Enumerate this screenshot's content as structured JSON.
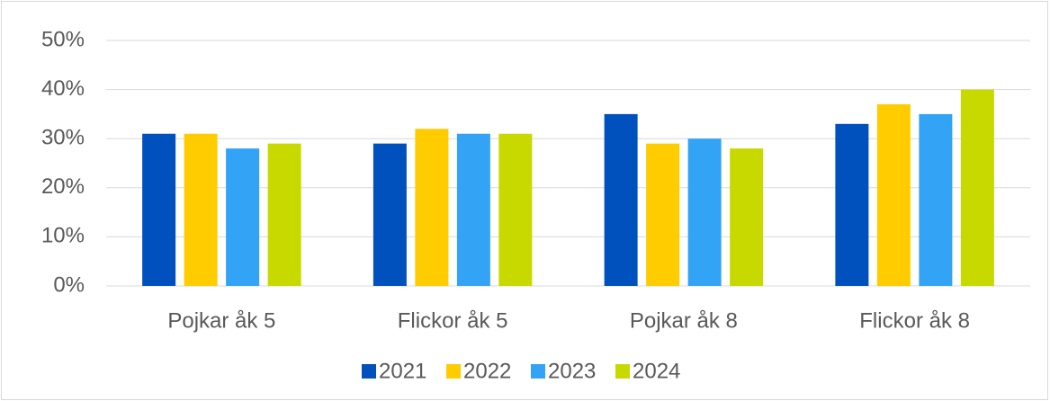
{
  "chart_data": {
    "type": "bar",
    "categories": [
      "Pojkar åk 5",
      "Flickor åk 5",
      "Pojkar åk 8",
      "Flickor åk 8"
    ],
    "series": [
      {
        "name": "2021",
        "color": "#0050be",
        "values": [
          31,
          29,
          35,
          33
        ]
      },
      {
        "name": "2022",
        "color": "#ffcc00",
        "values": [
          31,
          32,
          29,
          37
        ]
      },
      {
        "name": "2023",
        "color": "#33a3f5",
        "values": [
          28,
          31,
          30,
          35
        ]
      },
      {
        "name": "2024",
        "color": "#c8d900",
        "values": [
          29,
          31,
          28,
          40
        ]
      }
    ],
    "ylim": [
      0,
      50
    ],
    "yticks": [
      {
        "value": 0,
        "label": "0%"
      },
      {
        "value": 10,
        "label": "10%"
      },
      {
        "value": 20,
        "label": "20%"
      },
      {
        "value": 30,
        "label": "30%"
      },
      {
        "value": 40,
        "label": "40%"
      },
      {
        "value": 50,
        "label": "50%"
      }
    ],
    "grid": true,
    "legend": "bottom"
  }
}
